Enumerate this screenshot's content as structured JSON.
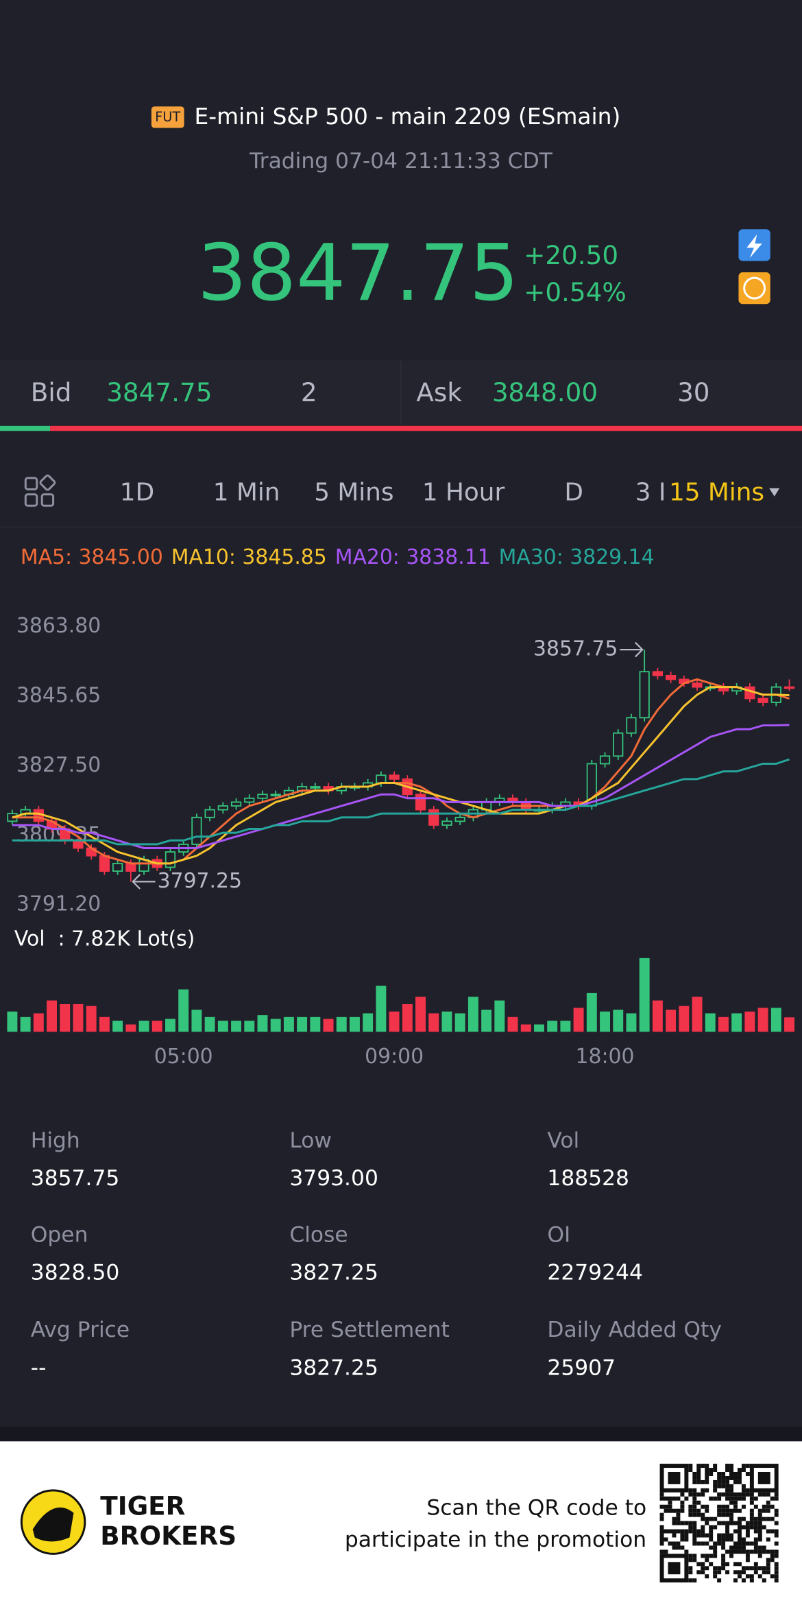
{
  "header": {
    "badge": "FUT",
    "title": "E-mini S&P 500 - main 2209 (ESmain)",
    "status": "Trading 07-04 21:11:33 CDT"
  },
  "quote": {
    "price": "3847.75",
    "change": "+20.50",
    "change_pct": "+0.54%"
  },
  "depth": {
    "bid_label": "Bid",
    "bid": "3847.75",
    "bid_size": 2,
    "ask_label": "Ask",
    "ask": "3848.00",
    "ask_size": 30
  },
  "tabs": [
    "1D",
    "1 Min",
    "5 Mins",
    "1 Hour",
    "D",
    "3 I"
  ],
  "selected_tab": "15 Mins",
  "chart_data": [
    {
      "type": "candlestick",
      "up_color": "#35c47c",
      "down_color": "#f2344b",
      "ylim": [
        3791.2,
        3863.8
      ],
      "yticks": [
        {
          "value": 3863.8,
          "label": "3863.80"
        },
        3845.65,
        {
          "value": 3827.5,
          "label": "3827.50"
        },
        3809.35,
        {
          "value": 3791.2,
          "label": "3791.20"
        }
      ],
      "open": [
        3813,
        3815,
        3816,
        3813,
        3811,
        3808,
        3806,
        3804,
        3800,
        3802,
        3800,
        3803,
        3801,
        3805,
        3807,
        3814,
        3816,
        3817,
        3818,
        3819,
        3820,
        3820,
        3821,
        3822,
        3822,
        3821,
        3822,
        3822,
        3823,
        3825,
        3824,
        3820,
        3816,
        3812,
        3813,
        3814,
        3816,
        3818,
        3819,
        3818,
        3816,
        3816,
        3817,
        3818,
        3817,
        3828,
        3830,
        3836,
        3840,
        3852,
        3851,
        3850,
        3849,
        3848,
        3848,
        3847,
        3848,
        3845,
        3844,
        3848
      ],
      "high": [
        3816,
        3817,
        3817,
        3814,
        3812,
        3809,
        3807,
        3805,
        3803,
        3803,
        3804,
        3804,
        3806,
        3808,
        3815,
        3817,
        3818,
        3819,
        3820,
        3821,
        3821,
        3822,
        3823,
        3823,
        3823,
        3823,
        3823,
        3824,
        3826,
        3826,
        3825,
        3821,
        3817,
        3814,
        3815,
        3817,
        3819,
        3820,
        3820,
        3819,
        3817,
        3818,
        3819,
        3819,
        3829,
        3831,
        3837,
        3841,
        3857.75,
        3853,
        3852,
        3851,
        3850,
        3849,
        3849,
        3849,
        3849,
        3846,
        3849,
        3850
      ],
      "low": [
        3812,
        3814,
        3812,
        3810,
        3807,
        3805,
        3803,
        3799,
        3799,
        3797.25,
        3799,
        3800,
        3800,
        3804,
        3806,
        3813,
        3815,
        3816,
        3817,
        3818,
        3819,
        3819,
        3820,
        3821,
        3820,
        3820,
        3821,
        3821,
        3822,
        3823,
        3819,
        3815,
        3811,
        3811,
        3812,
        3813,
        3815,
        3817,
        3817,
        3815,
        3815,
        3815,
        3816,
        3816,
        3816,
        3827,
        3829,
        3835,
        3839,
        3850,
        3849,
        3848,
        3847,
        3847,
        3846,
        3846,
        3844,
        3843,
        3843,
        3847
      ],
      "close": [
        3815,
        3816,
        3813,
        3811,
        3808,
        3806,
        3804,
        3800,
        3802,
        3800,
        3803,
        3801,
        3805,
        3807,
        3814,
        3816,
        3817,
        3818,
        3819,
        3820,
        3820,
        3821,
        3822,
        3822,
        3821,
        3822,
        3822,
        3823,
        3825,
        3824,
        3820,
        3816,
        3812,
        3813,
        3814,
        3816,
        3818,
        3819,
        3818,
        3816,
        3816,
        3817,
        3818,
        3817,
        3828,
        3830,
        3836,
        3840,
        3852,
        3851,
        3850,
        3849,
        3848,
        3848,
        3847,
        3848,
        3845,
        3844,
        3848,
        3847.75
      ],
      "series": [
        {
          "name": "MA5: 3845.00",
          "color": "#f26b38",
          "values": [
            3814,
            3814,
            3814,
            3813,
            3811,
            3809,
            3806,
            3804,
            3803,
            3802,
            3802,
            3802,
            3802,
            3803,
            3806,
            3809,
            3812,
            3815,
            3817,
            3818,
            3819,
            3820,
            3821,
            3821,
            3821,
            3822,
            3822,
            3822,
            3823,
            3823,
            3823,
            3822,
            3820,
            3817,
            3815,
            3814,
            3815,
            3816,
            3817,
            3817,
            3817,
            3817,
            3817,
            3817,
            3819,
            3822,
            3826,
            3830,
            3837,
            3842,
            3846,
            3849,
            3850,
            3849,
            3848,
            3848,
            3847,
            3846,
            3846,
            3845
          ]
        },
        {
          "name": "MA10: 3845.85",
          "color": "#f7c32e",
          "values": [
            3814,
            3815,
            3815,
            3814,
            3813,
            3811,
            3809,
            3807,
            3805,
            3804,
            3803,
            3802,
            3802,
            3803,
            3804,
            3806,
            3809,
            3812,
            3814,
            3816,
            3818,
            3819,
            3820,
            3821,
            3821,
            3822,
            3822,
            3822,
            3823,
            3823,
            3822,
            3821,
            3820,
            3819,
            3818,
            3817,
            3816,
            3815,
            3815,
            3815,
            3815,
            3816,
            3817,
            3817,
            3819,
            3821,
            3823,
            3827,
            3831,
            3835,
            3839,
            3843,
            3846,
            3848,
            3848,
            3848,
            3847,
            3846,
            3846,
            3845.85
          ]
        },
        {
          "name": "MA20: 3838.11",
          "color": "#a855f7",
          "values": [
            3812,
            3812,
            3812,
            3811,
            3811,
            3810,
            3810,
            3809,
            3808,
            3807,
            3806,
            3806,
            3806,
            3806,
            3806,
            3807,
            3808,
            3809,
            3810,
            3811,
            3812,
            3813,
            3814,
            3815,
            3816,
            3817,
            3818,
            3819,
            3820,
            3820,
            3819,
            3819,
            3819,
            3818,
            3818,
            3818,
            3818,
            3818,
            3818,
            3818,
            3818,
            3817,
            3817,
            3817,
            3818,
            3819,
            3821,
            3823,
            3825,
            3827,
            3829,
            3831,
            3833,
            3835,
            3836,
            3837,
            3837,
            3838,
            3838,
            3838.11
          ]
        },
        {
          "name": "MA30: 3829.14",
          "color": "#26a69a",
          "values": [
            3808,
            3808,
            3808,
            3808,
            3808,
            3808,
            3808,
            3808,
            3807,
            3807,
            3807,
            3807,
            3808,
            3808,
            3809,
            3809,
            3810,
            3810,
            3811,
            3811,
            3812,
            3812,
            3813,
            3813,
            3813,
            3814,
            3814,
            3814,
            3815,
            3815,
            3815,
            3815,
            3815,
            3815,
            3815,
            3815,
            3815,
            3815,
            3816,
            3816,
            3816,
            3816,
            3816,
            3817,
            3817,
            3818,
            3819,
            3820,
            3821,
            3822,
            3823,
            3824,
            3824,
            3825,
            3826,
            3826,
            3827,
            3828,
            3828,
            3829.14
          ]
        }
      ],
      "annotations": [
        {
          "label": "3857.75",
          "value": 3857.75,
          "side": "high"
        },
        {
          "label": "3797.25",
          "value": 3797.25,
          "side": "low"
        }
      ]
    },
    {
      "type": "bar",
      "title": "Vol  : 7.82K Lot(s)",
      "ylim": [
        0,
        40
      ],
      "categories": [
        null,
        null,
        null,
        null,
        null,
        null,
        null,
        null,
        null,
        null,
        null,
        null,
        null,
        "05:00",
        null,
        null,
        null,
        null,
        null,
        null,
        null,
        null,
        null,
        null,
        null,
        null,
        null,
        null,
        null,
        "09:00",
        null,
        null,
        null,
        null,
        null,
        null,
        null,
        null,
        null,
        null,
        null,
        null,
        null,
        null,
        null,
        "18:00",
        null,
        null,
        null,
        null,
        null,
        null,
        null,
        null,
        null,
        null,
        null,
        null,
        null,
        null
      ],
      "values": [
        11,
        8,
        10,
        17,
        15,
        15,
        14,
        8,
        6,
        4,
        6,
        6,
        7,
        23,
        12,
        8,
        6,
        6,
        6,
        9,
        7,
        8,
        8,
        8,
        7,
        8,
        8,
        10,
        25,
        11,
        15,
        19,
        10,
        11,
        10,
        19,
        12,
        17,
        8,
        4,
        4,
        6,
        6,
        13,
        21,
        11,
        12,
        10,
        40,
        17,
        12,
        14,
        19,
        10,
        8,
        10,
        11,
        13,
        13,
        7.82
      ]
    }
  ],
  "stats": [
    {
      "label": "High",
      "value": "3857.75"
    },
    {
      "label": "Low",
      "value": "3793.00"
    },
    {
      "label": "Vol",
      "value": "188528"
    },
    {
      "label": "Open",
      "value": "3828.50"
    },
    {
      "label": "Close",
      "value": "3827.25"
    },
    {
      "label": "OI",
      "value": "2279244"
    },
    {
      "label": "Avg Price",
      "value": "--"
    },
    {
      "label": "Pre Settlement",
      "value": "3827.25"
    },
    {
      "label": "Daily Added Qty",
      "value": "25907"
    }
  ],
  "footer": {
    "brand": [
      "TIGER",
      "BROKERS"
    ],
    "cta": [
      "Scan the QR code to",
      "participate in the promotion"
    ]
  }
}
